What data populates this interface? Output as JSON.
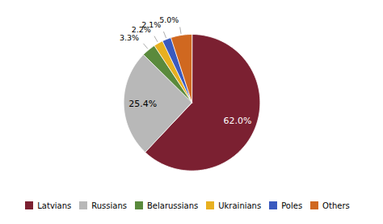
{
  "chart_data": {
    "type": "pie",
    "categories": [
      "Latvians",
      "Russians",
      "Belarussians",
      "Ukrainians",
      "Poles",
      "Others"
    ],
    "values": [
      62.0,
      25.4,
      3.3,
      2.2,
      2.1,
      5.0
    ],
    "value_labels": [
      "62.0%",
      "25.4%",
      "3.3%",
      "2.2%",
      "2.1%",
      "5.0%"
    ],
    "colors": [
      "#7b2031",
      "#b8b8b8",
      "#5a8a3c",
      "#e8b020",
      "#3a5abf",
      "#d06820"
    ],
    "data_labels": true,
    "legend": "bottom"
  }
}
